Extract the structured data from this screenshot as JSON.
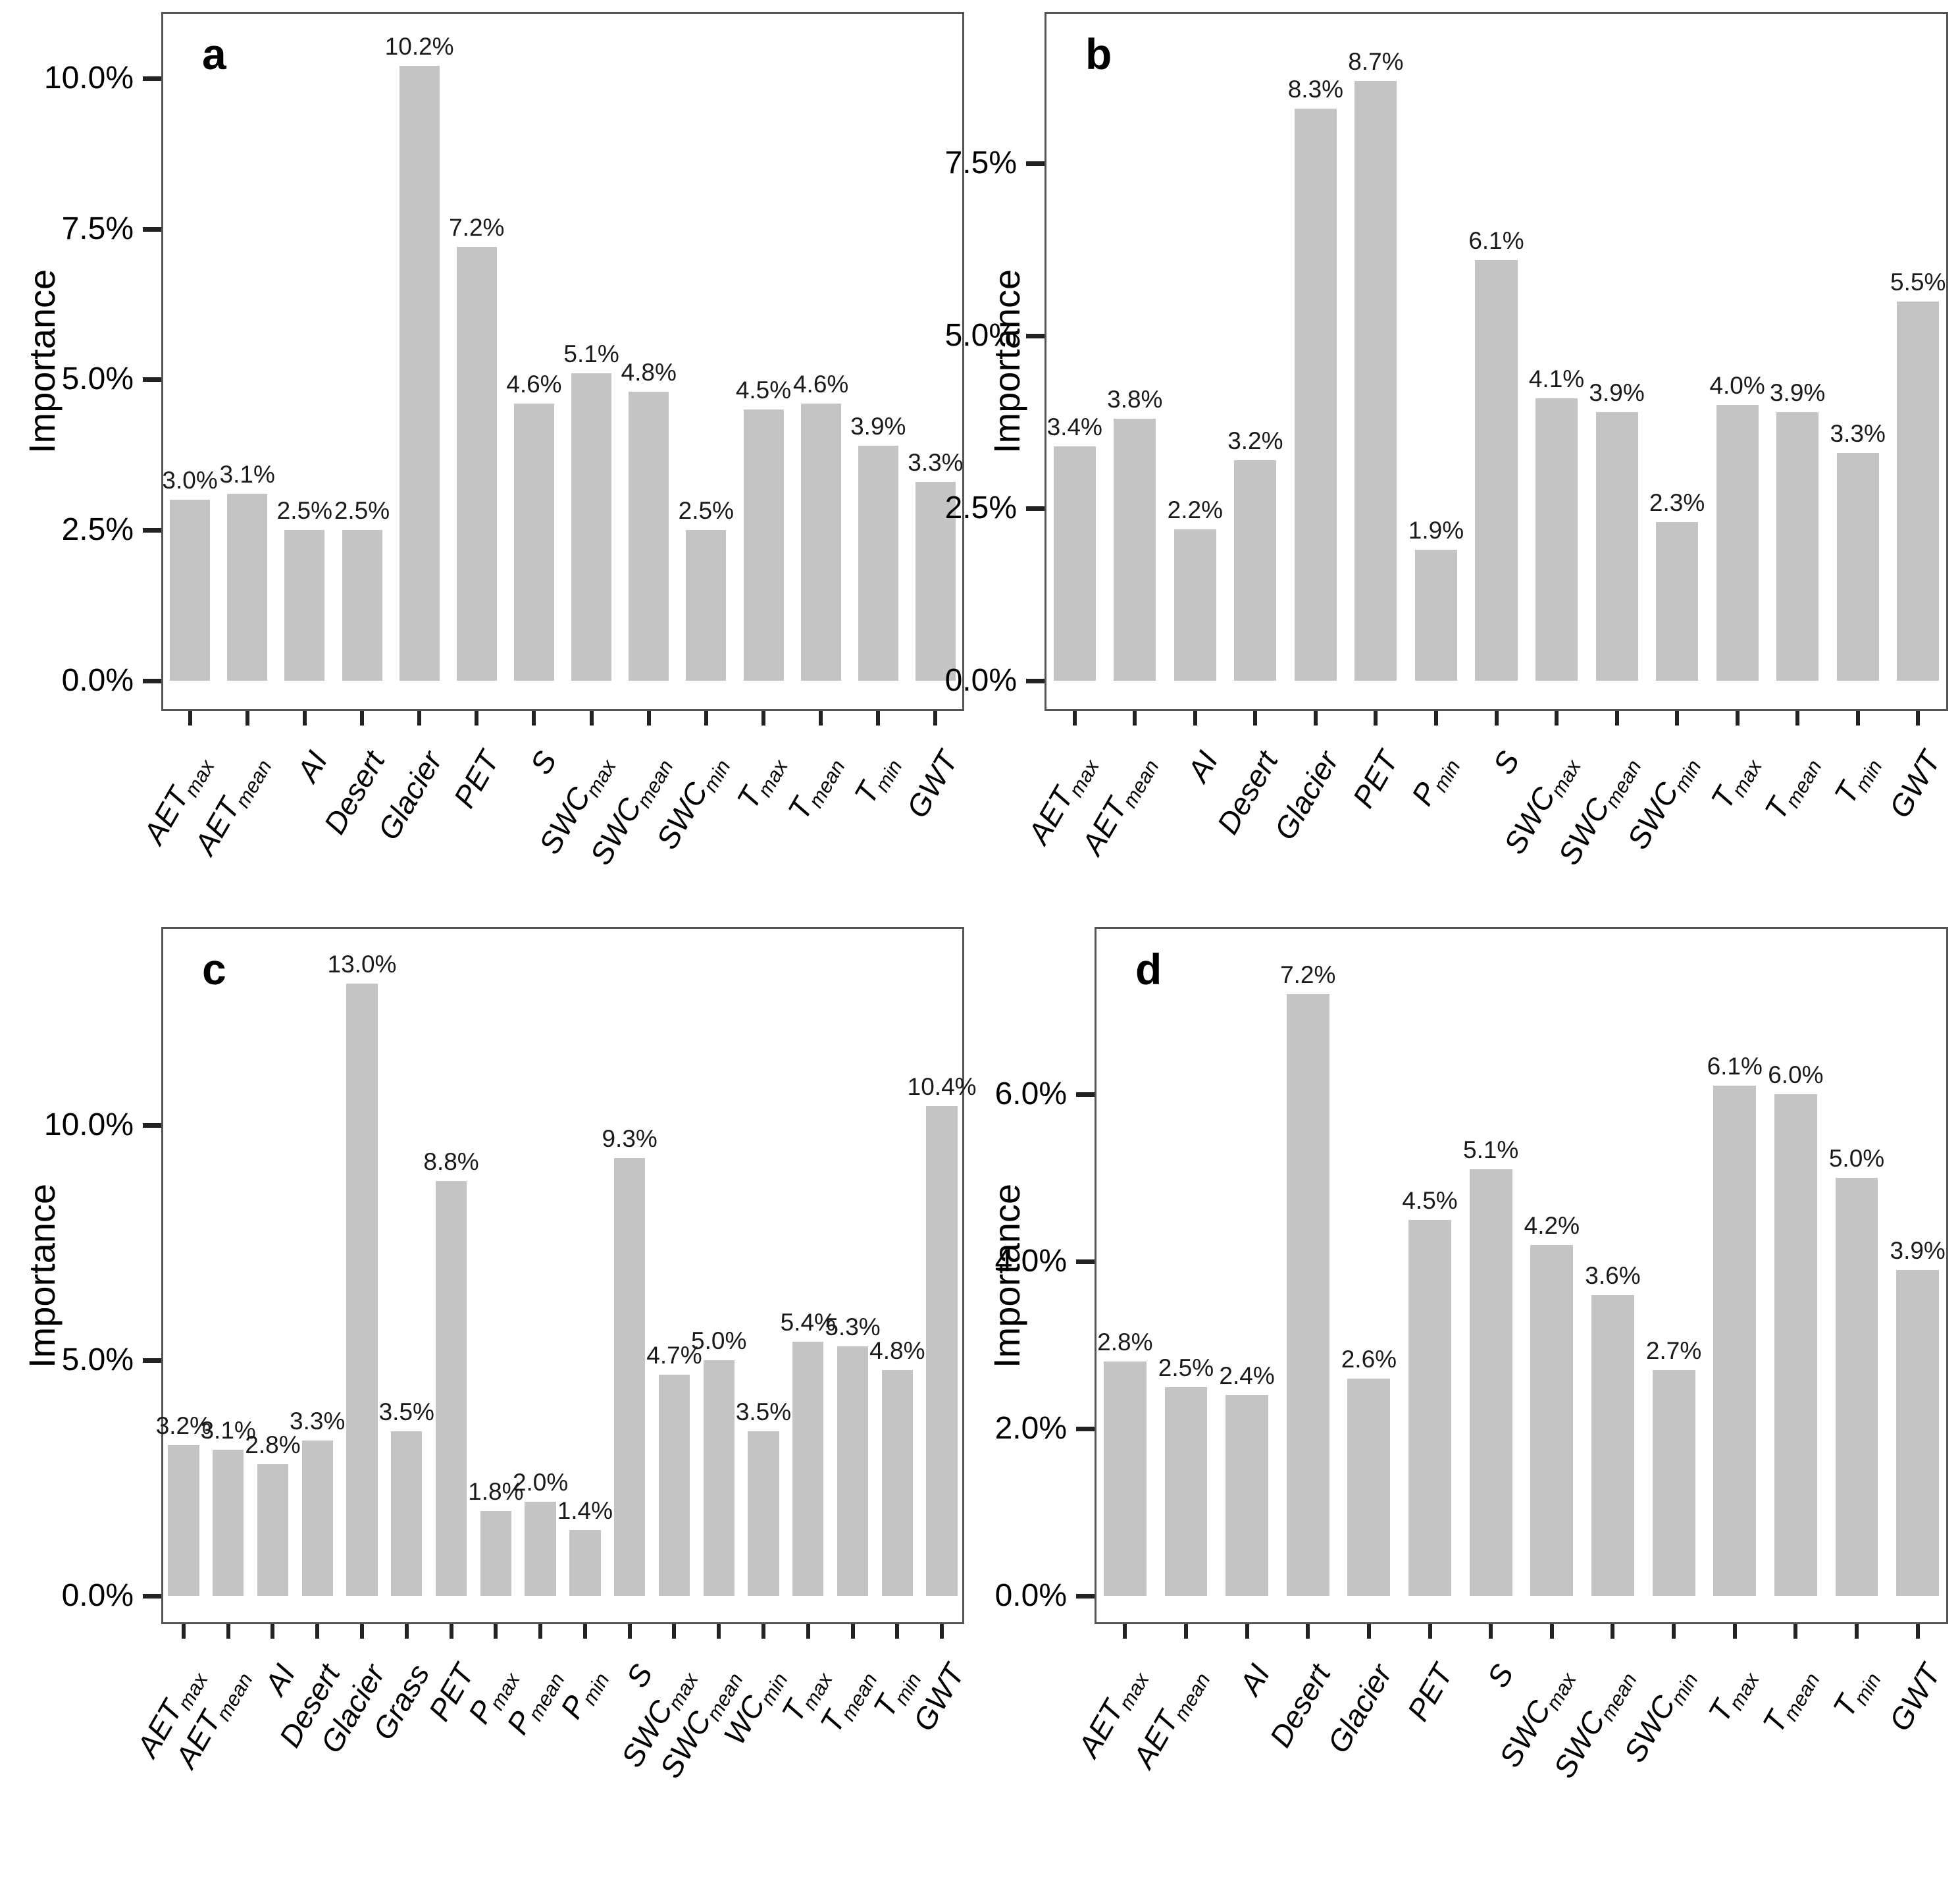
{
  "page": {
    "background": "#ffffff"
  },
  "styles": {
    "bar_color": "#c4c4c4",
    "axis_color": "#555555",
    "tick_color": "#222222",
    "text_color": "#111111"
  },
  "chart_data": [
    {
      "type": "bar",
      "panel": "a",
      "title": "",
      "xlabel": "",
      "ylabel": "Importance",
      "grid": false,
      "legend": "none",
      "ylim": [
        0,
        11.1
      ],
      "yticks": [
        {
          "label": "10.0%",
          "value": 10.0
        },
        {
          "label": "7.5%",
          "value": 7.5
        },
        {
          "label": "5.0%",
          "value": 5.0
        },
        {
          "label": "2.5%",
          "value": 2.5
        },
        {
          "label": "0.0%",
          "value": 0.0
        }
      ],
      "categories": [
        "AET|max",
        "AET|mean",
        "AI",
        "Desert",
        "Glacier",
        "PET",
        "S",
        "SWC|max",
        "SWC|mean",
        "SWC|min",
        "T|max",
        "T|mean",
        "T|min",
        "GWT"
      ],
      "values": [
        3.0,
        3.1,
        2.5,
        2.5,
        10.2,
        7.2,
        4.6,
        5.1,
        4.8,
        2.5,
        4.5,
        4.6,
        3.9,
        3.3
      ],
      "bar_labels": [
        "3.0%",
        "3.1%",
        "2.5%",
        "2.5%",
        "10.2%",
        "7.2%",
        "4.6%",
        "5.1%",
        "4.8%",
        "2.5%",
        "4.5%",
        "4.6%",
        "3.9%",
        "3.3%"
      ]
    },
    {
      "type": "bar",
      "panel": "b",
      "title": "",
      "xlabel": "",
      "ylabel": "Importance",
      "grid": false,
      "legend": "none",
      "ylim": [
        0,
        9.7
      ],
      "yticks": [
        {
          "label": "7.5%",
          "value": 7.5
        },
        {
          "label": "5.0%",
          "value": 5.0
        },
        {
          "label": "2.5%",
          "value": 2.5
        },
        {
          "label": "0.0%",
          "value": 0.0
        }
      ],
      "categories": [
        "AET|max",
        "AET|mean",
        "AI",
        "Desert",
        "Glacier",
        "PET",
        "P|min",
        "S",
        "SWC|max",
        "SWC|mean",
        "SWC|min",
        "T|max",
        "T|mean",
        "T|min",
        "GWT"
      ],
      "values": [
        3.4,
        3.8,
        2.2,
        3.2,
        8.3,
        8.7,
        1.9,
        6.1,
        4.1,
        3.9,
        2.3,
        4.0,
        3.9,
        3.3,
        5.5
      ],
      "bar_labels": [
        "3.4%",
        "3.8%",
        "2.2%",
        "3.2%",
        "8.3%",
        "8.7%",
        "1.9%",
        "6.1%",
        "4.1%",
        "3.9%",
        "2.3%",
        "4.0%",
        "3.9%",
        "3.3%",
        "5.5%"
      ]
    },
    {
      "type": "bar",
      "panel": "c",
      "title": "",
      "xlabel": "",
      "ylabel": "Importance",
      "grid": false,
      "legend": "none",
      "ylim": [
        0,
        14.2
      ],
      "yticks": [
        {
          "label": "10.0%",
          "value": 10.0
        },
        {
          "label": "5.0%",
          "value": 5.0
        },
        {
          "label": "0.0%",
          "value": 0.0
        }
      ],
      "categories": [
        "AET|max",
        "AET|mean",
        "AI",
        "Desert",
        "Glacier",
        "Grass",
        "PET",
        "P|max",
        "P|mean",
        "P|min",
        "S",
        "SWC|max",
        "SWC|mean",
        "WC|min",
        "T|max",
        "T|mean",
        "T|min",
        "GWT"
      ],
      "values": [
        3.2,
        3.1,
        2.8,
        3.3,
        13.0,
        3.5,
        8.8,
        1.8,
        2.0,
        1.4,
        9.3,
        4.7,
        5.0,
        3.5,
        5.4,
        5.3,
        4.8,
        10.4
      ],
      "bar_labels": [
        "3.2%",
        "3.1%",
        "2.8%",
        "3.3%",
        "13.0%",
        "3.5%",
        "8.8%",
        "1.8%",
        "2.0%",
        "1.4%",
        "9.3%",
        "4.7%",
        "5.0%",
        "3.5%",
        "5.4%",
        "5.3%",
        "4.8%",
        "10.4%"
      ]
    },
    {
      "type": "bar",
      "panel": "d",
      "title": "",
      "xlabel": "",
      "ylabel": "Importance",
      "grid": false,
      "legend": "none",
      "ylim": [
        0,
        8.0
      ],
      "yticks": [
        {
          "label": "6.0%",
          "value": 6.0
        },
        {
          "label": "4.0%",
          "value": 4.0
        },
        {
          "label": "2.0%",
          "value": 2.0
        },
        {
          "label": "0.0%",
          "value": 0.0
        }
      ],
      "categories": [
        "AET|max",
        "AET|mean",
        "AI",
        "Desert",
        "Glacier",
        "PET",
        "S",
        "SWC|max",
        "SWC|mean",
        "SWC|min",
        "T|max",
        "T|mean",
        "T|min",
        "GWT"
      ],
      "values": [
        2.8,
        2.5,
        2.4,
        7.2,
        2.6,
        4.5,
        5.1,
        4.2,
        3.6,
        2.7,
        6.1,
        6.0,
        5.0,
        3.9
      ],
      "bar_labels": [
        "2.8%",
        "2.5%",
        "2.4%",
        "7.2%",
        "2.6%",
        "4.5%",
        "5.1%",
        "4.2%",
        "3.6%",
        "2.7%",
        "6.1%",
        "6.0%",
        "5.0%",
        "3.9%"
      ]
    }
  ]
}
